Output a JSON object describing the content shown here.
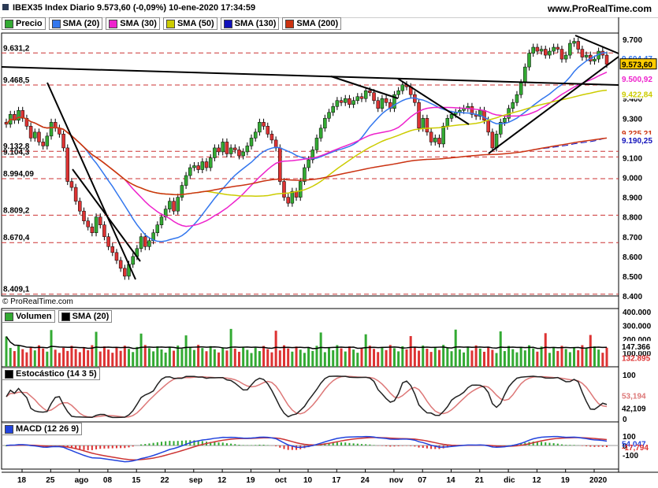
{
  "header": {
    "title": "IBEX35 Index Diario 9.573,60 (-0,09%) 10-ene-2020 17:34:59",
    "site": "www.ProRealTime.com"
  },
  "credit": "© ProRealTime.com",
  "colors": {
    "bull": "#33aa33",
    "bear": "#dd3333",
    "sma20": "#3377ee",
    "sma30": "#ee22cc",
    "sma50": "#cccc00",
    "sma130": "#1111bb",
    "sma200": "#cc3311",
    "stoch": "#222222",
    "stochSig": "#dd7777",
    "macd": "#2244dd",
    "macdSig": "#cc3333"
  },
  "chart_data": [
    {
      "type": "candlestick",
      "title": "",
      "legend": [
        "Precio",
        "SMA (20)",
        "SMA (30)",
        "SMA (50)",
        "SMA (130)",
        "SMA (200)"
      ],
      "ylim": [
        8400,
        9700
      ],
      "yticks": [
        "9.700",
        "9.600",
        "9.500",
        "9.400",
        "9.300",
        "9.200",
        "9.100",
        "9.000",
        "8.900",
        "8.800",
        "8.700",
        "8.600",
        "8.500",
        "8.400"
      ],
      "xlabels": [
        "18",
        "25",
        "ago",
        "08",
        "15",
        "22",
        "sep",
        "12",
        "19",
        "oct",
        "10",
        "17",
        "24",
        "nov",
        "07",
        "14",
        "21",
        "dic",
        "12",
        "19",
        "2020"
      ],
      "left_levels": [
        "9.631,2",
        "9.468,5",
        "9.132,8",
        "9.104,3",
        "8.994,09",
        "8.809,2",
        "8.670,4",
        "8.409,1"
      ],
      "last_values": {
        "price": "9.573,60",
        "sma20": "9.604,47",
        "sma30": "9.500,92",
        "sma50": "9.422,84",
        "sma200": "9.225,21",
        "sma130": "9.190,25"
      },
      "closes": [
        9270,
        9320,
        9290,
        9340,
        9300,
        9260,
        9200,
        9230,
        9180,
        9160,
        9210,
        9280,
        9250,
        9220,
        9150,
        8980,
        8950,
        8880,
        8830,
        8780,
        8750,
        8720,
        8800,
        8760,
        8700,
        8650,
        8620,
        8580,
        8540,
        8500,
        8560,
        8600,
        8640,
        8700,
        8650,
        8680,
        8720,
        8760,
        8800,
        8840,
        8880,
        8830,
        8900,
        8960,
        9010,
        9050,
        9060,
        9040,
        9080,
        9050,
        9100,
        9150,
        9130,
        9180,
        9120,
        9150,
        9140,
        9110,
        9130,
        9160,
        9200,
        9230,
        9280,
        9260,
        9220,
        9190,
        9150,
        8980,
        8900,
        8870,
        8930,
        8900,
        8980,
        9050,
        9090,
        9140,
        9200,
        9250,
        9300,
        9330,
        9360,
        9390,
        9380,
        9400,
        9370,
        9390,
        9410,
        9400,
        9440,
        9430,
        9390,
        9350,
        9400,
        9380,
        9350,
        9420,
        9440,
        9470,
        9460,
        9420,
        9380,
        9250,
        9300,
        9230,
        9180,
        9200,
        9170,
        9260,
        9300,
        9320,
        9330,
        9340,
        9350,
        9360,
        9320,
        9310,
        9340,
        9290,
        9230,
        9150,
        9220,
        9280,
        9300,
        9350,
        9380,
        9420,
        9480,
        9560,
        9630,
        9660,
        9640,
        9650,
        9620,
        9640,
        9660,
        9650,
        9600,
        9620,
        9680,
        9690,
        9650,
        9610,
        9620,
        9590,
        9600,
        9640,
        9620,
        9573.6
      ],
      "series": [
        {
          "name": "SMA (20)"
        },
        {
          "name": "SMA (30)"
        },
        {
          "name": "SMA (50)"
        },
        {
          "name": "SMA (130)"
        },
        {
          "name": "SMA (200)"
        }
      ]
    },
    {
      "type": "bar",
      "title": "",
      "legend": [
        "Volumen",
        "SMA (20)"
      ],
      "ylim": [
        0,
        400000
      ],
      "yticks": [
        "400.000",
        "300.000",
        "200.000",
        "100.000"
      ],
      "last_values": {
        "sma": "147.366",
        "vol": "132.895"
      }
    },
    {
      "type": "line",
      "title": "",
      "legend": [
        "Estocástico (14 3 5)"
      ],
      "ylim": [
        0,
        100
      ],
      "yticks": [
        "100",
        "0"
      ],
      "last_values": {
        "k": "53,194",
        "d": "42,109"
      }
    },
    {
      "type": "line",
      "title": "",
      "legend": [
        "MACD (12 26 9)"
      ],
      "yticks": [
        "100",
        "0",
        "-100"
      ],
      "last_values": {
        "macd": "54,047",
        "hist": "-17,794"
      }
    }
  ]
}
